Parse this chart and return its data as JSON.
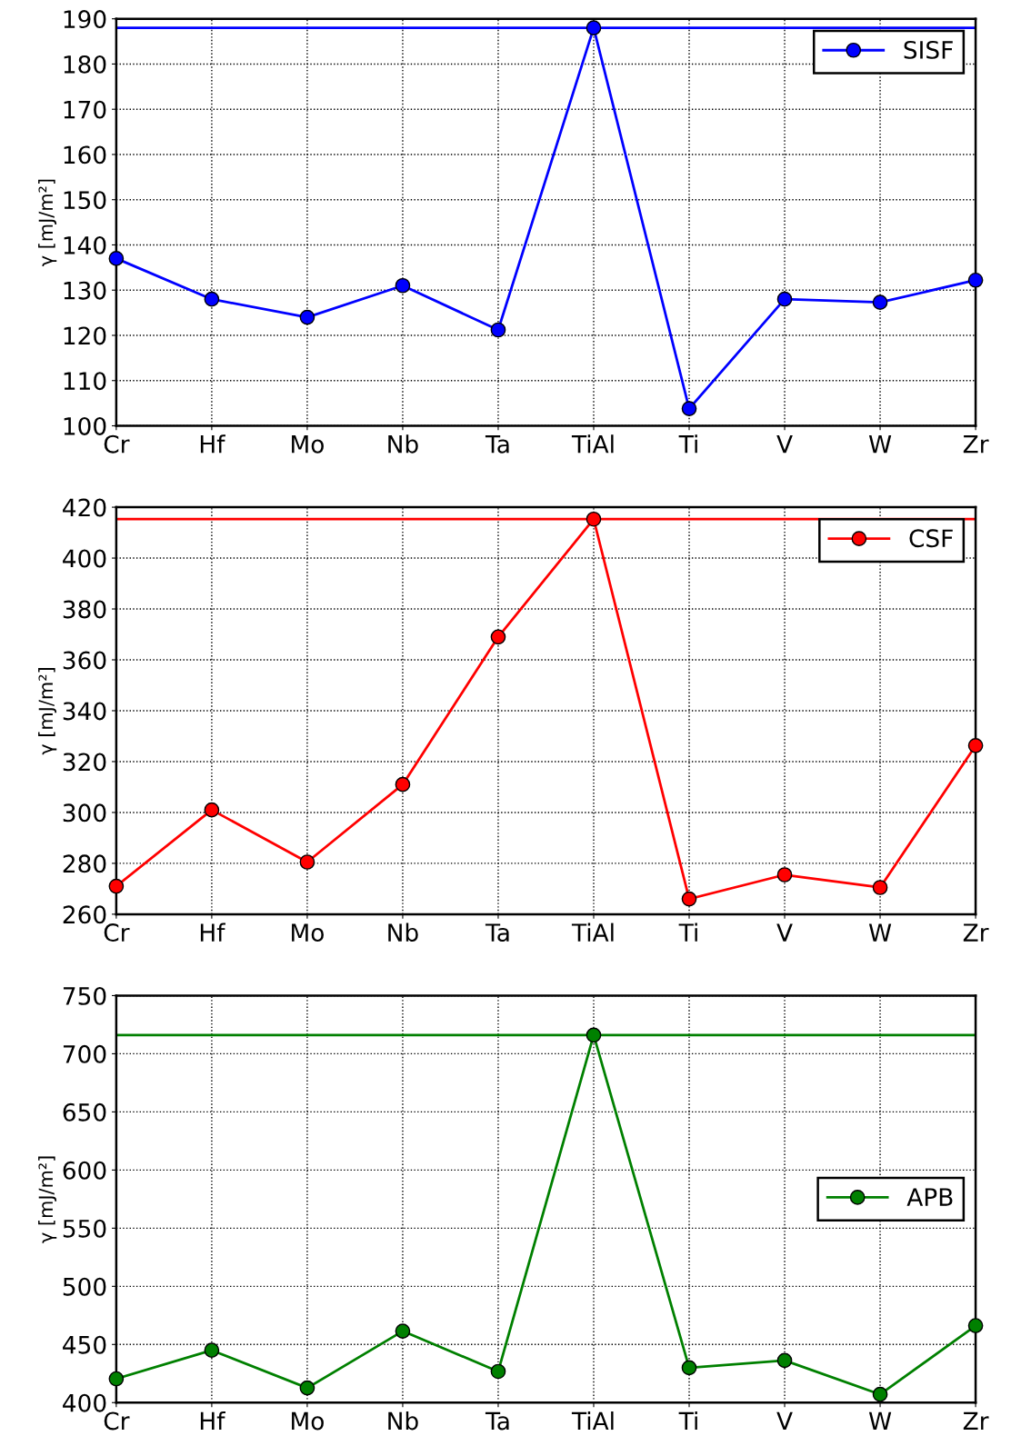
{
  "chart_data": [
    {
      "type": "line",
      "ylabel": "γ [mJ/m²]",
      "categories": [
        "Cr",
        "Hf",
        "Mo",
        "Nb",
        "Ta",
        "TiAl",
        "Ti",
        "V",
        "W",
        "Zr"
      ],
      "series": [
        {
          "name": "SISF",
          "color": "#0000ff",
          "values": [
            137,
            128,
            124,
            131,
            121.2,
            188,
            103.8,
            128,
            127.3,
            132.2
          ]
        }
      ],
      "ylim": [
        100,
        190
      ],
      "yticks": [
        100,
        110,
        120,
        130,
        140,
        150,
        160,
        170,
        180,
        190
      ],
      "grid": true,
      "legend": "top right",
      "marker": "circle",
      "line_style": "solid",
      "ref_lines": [
        {
          "axis": "y",
          "value": 188,
          "color": "#0000ff"
        }
      ]
    },
    {
      "type": "line",
      "ylabel": "γ [mJ/m²]",
      "categories": [
        "Cr",
        "Hf",
        "Mo",
        "Nb",
        "Ta",
        "TiAl",
        "Ti",
        "V",
        "W",
        "Zr"
      ],
      "series": [
        {
          "name": "CSF",
          "color": "#ff0000",
          "values": [
            271,
            301,
            280.5,
            311,
            369,
            415.3,
            266,
            275.5,
            270.5,
            326.3
          ]
        }
      ],
      "ylim": [
        260,
        420
      ],
      "yticks": [
        260,
        280,
        300,
        320,
        340,
        360,
        380,
        400,
        420
      ],
      "grid": true,
      "legend": "top right",
      "marker": "circle",
      "line_style": "solid",
      "ref_lines": [
        {
          "axis": "y",
          "value": 415.3,
          "color": "#ff0000"
        }
      ]
    },
    {
      "type": "line",
      "ylabel": "γ [mJ/m²]",
      "categories": [
        "Cr",
        "Hf",
        "Mo",
        "Nb",
        "Ta",
        "TiAl",
        "Ti",
        "V",
        "W",
        "Zr"
      ],
      "series": [
        {
          "name": "APB",
          "color": "#008000",
          "values": [
            420.5,
            445,
            412.6,
            461.5,
            426.8,
            716,
            430,
            436.3,
            407.1,
            466.2
          ]
        }
      ],
      "ylim": [
        400,
        750
      ],
      "yticks": [
        400,
        450,
        500,
        550,
        600,
        650,
        700,
        750
      ],
      "grid": true,
      "legend": "right",
      "marker": "circle",
      "line_style": "solid",
      "ref_lines": [
        {
          "axis": "y",
          "value": 716,
          "color": "#008000"
        }
      ]
    }
  ]
}
